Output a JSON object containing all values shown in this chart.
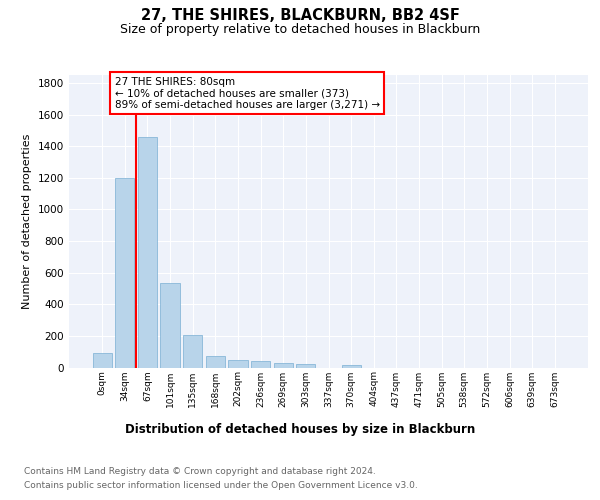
{
  "title": "27, THE SHIRES, BLACKBURN, BB2 4SF",
  "subtitle": "Size of property relative to detached houses in Blackburn",
  "xlabel": "Distribution of detached houses by size in Blackburn",
  "ylabel": "Number of detached properties",
  "bar_labels": [
    "0sqm",
    "34sqm",
    "67sqm",
    "101sqm",
    "135sqm",
    "168sqm",
    "202sqm",
    "236sqm",
    "269sqm",
    "303sqm",
    "337sqm",
    "370sqm",
    "404sqm",
    "437sqm",
    "471sqm",
    "505sqm",
    "538sqm",
    "572sqm",
    "606sqm",
    "639sqm",
    "673sqm"
  ],
  "bar_values": [
    90,
    1200,
    1460,
    535,
    205,
    70,
    48,
    42,
    28,
    20,
    0,
    15,
    0,
    0,
    0,
    0,
    0,
    0,
    0,
    0,
    0
  ],
  "bar_color": "#b8d4ea",
  "bar_edge_color": "#7aafd4",
  "vline_color": "red",
  "vline_x": 1.5,
  "annotation_text": "27 THE SHIRES: 80sqm\n← 10% of detached houses are smaller (373)\n89% of semi-detached houses are larger (3,271) →",
  "ylim": [
    0,
    1850
  ],
  "yticks": [
    0,
    200,
    400,
    600,
    800,
    1000,
    1200,
    1400,
    1600,
    1800
  ],
  "bg_color": "#eef2fa",
  "footer_line1": "Contains HM Land Registry data © Crown copyright and database right 2024.",
  "footer_line2": "Contains public sector information licensed under the Open Government Licence v3.0."
}
